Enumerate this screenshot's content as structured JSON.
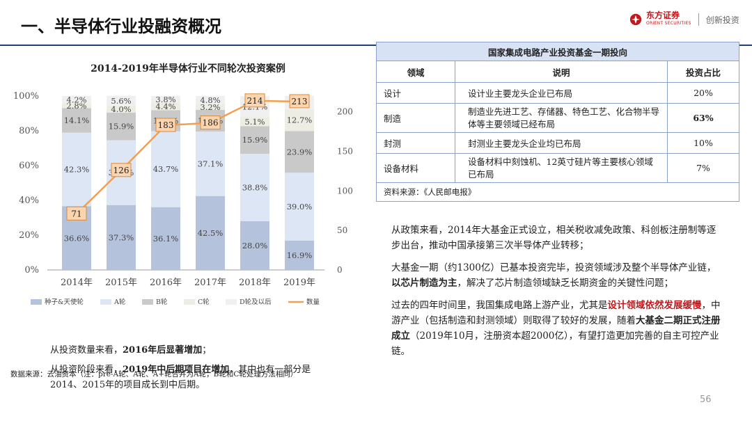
{
  "header": {
    "title": "一、半导体行业投融资概况",
    "logo_cn": "东方证券",
    "logo_en": "ORIENT SECURITIES",
    "slogan": "创新投资",
    "brand_color": "#c0181c"
  },
  "chart_data": {
    "type": "bar",
    "stacked": true,
    "title": "2014-2019年半导体行业不同轮次投资案例",
    "categories": [
      "2014年",
      "2015年",
      "2016年",
      "2017年",
      "2018年",
      "2019年"
    ],
    "ylim": [
      0,
      100
    ],
    "y_ticks": [
      "0%",
      "20%",
      "40%",
      "60%",
      "80%",
      "100%"
    ],
    "y2lim": [
      0,
      220
    ],
    "y2_ticks": [
      "0",
      "50",
      "100",
      "150",
      "200"
    ],
    "series": [
      {
        "name": "种子&天使轮",
        "values": [
          36.6,
          37.3,
          36.1,
          42.5,
          28.0,
          16.9
        ],
        "color": "#b4c2dc"
      },
      {
        "name": "A轮",
        "values": [
          42.3,
          37.3,
          43.7,
          37.1,
          38.8,
          39.0
        ],
        "color": "#dde6f4"
      },
      {
        "name": "B轮",
        "values": [
          14.1,
          15.9,
          12.0,
          12.4,
          15.9,
          23.9
        ],
        "color": "#c9c9c9"
      },
      {
        "name": "C轮",
        "values": [
          2.8,
          4.0,
          4.4,
          3.2,
          5.1,
          12.7
        ],
        "color": "#eeede3"
      },
      {
        "name": "D轮及以后",
        "values": [
          4.2,
          5.6,
          3.8,
          4.8,
          12.1,
          7.5
        ],
        "color": "#f0f0f0"
      }
    ],
    "line": {
      "name": "数量",
      "values": [
        71,
        126,
        183,
        186,
        214,
        213
      ],
      "color": "#f0a050"
    },
    "legend_position": "bottom",
    "source": "数据来源：云油资本（注：pre-A轮、A轮、A+轮合并为A轮，B轮和C轮处理方法相同）"
  },
  "left_notes": {
    "p1_text": "从投资数量来看，",
    "p1_bold": "2016年后显著增加",
    "p1_end": "；",
    "p2_text": "从投资阶段来看，",
    "p2_bold": "2019年中后期项目在增加",
    "p2_end": "，其中也有一部分是2014、2015年的项目成长到中后期。"
  },
  "table": {
    "caption": "国家集成电路产业投资基金一期投向",
    "headers": [
      "领域",
      "说明",
      "投资占比"
    ],
    "rows": [
      {
        "field": "设计",
        "desc": "设计业主要龙头企业已布局",
        "share": "20%"
      },
      {
        "field": "制造",
        "desc": "制造业先进工艺、存储器、特色工艺、化合物半导体等主要领域已经布局",
        "share": "63%"
      },
      {
        "field": "封测",
        "desc": "封测业主要龙头企业均已布局",
        "share": "10%"
      },
      {
        "field": "设备材料",
        "desc": "设备材料中刻蚀机、12英寸硅片等主要核心领域已布局",
        "share": "7%"
      }
    ],
    "source": "资料来源：《人民邮电报》"
  },
  "right_text": {
    "para1": "从政策来看，2014年大基金正式设立，相关税收减免政策、科创板注册制等逐步出台，推动中国承接第三次半导体产业转移；",
    "para2_a": "大基金一期（约1300亿）已基本投资完毕，投资领域涉及整个半导体产业链，",
    "para2_b": "以芯片制造为主",
    "para2_c": "，解决了芯片制造领域缺乏长期资金的关键性问题；",
    "para3_a": "过去的四年时间里，我国集成电路上游产业，尤其是",
    "para3_red": "设计领域依然发展缓慢",
    "para3_b": "，中游产业（包括制造和封测领域）则取得了较好的发展，随着",
    "para3_bold": "大基金二期正式注册成立",
    "para3_c": "（2019年10月，注册资本超2000亿），有望打造更加完善的自主可控产业链。"
  },
  "page_number": "56"
}
